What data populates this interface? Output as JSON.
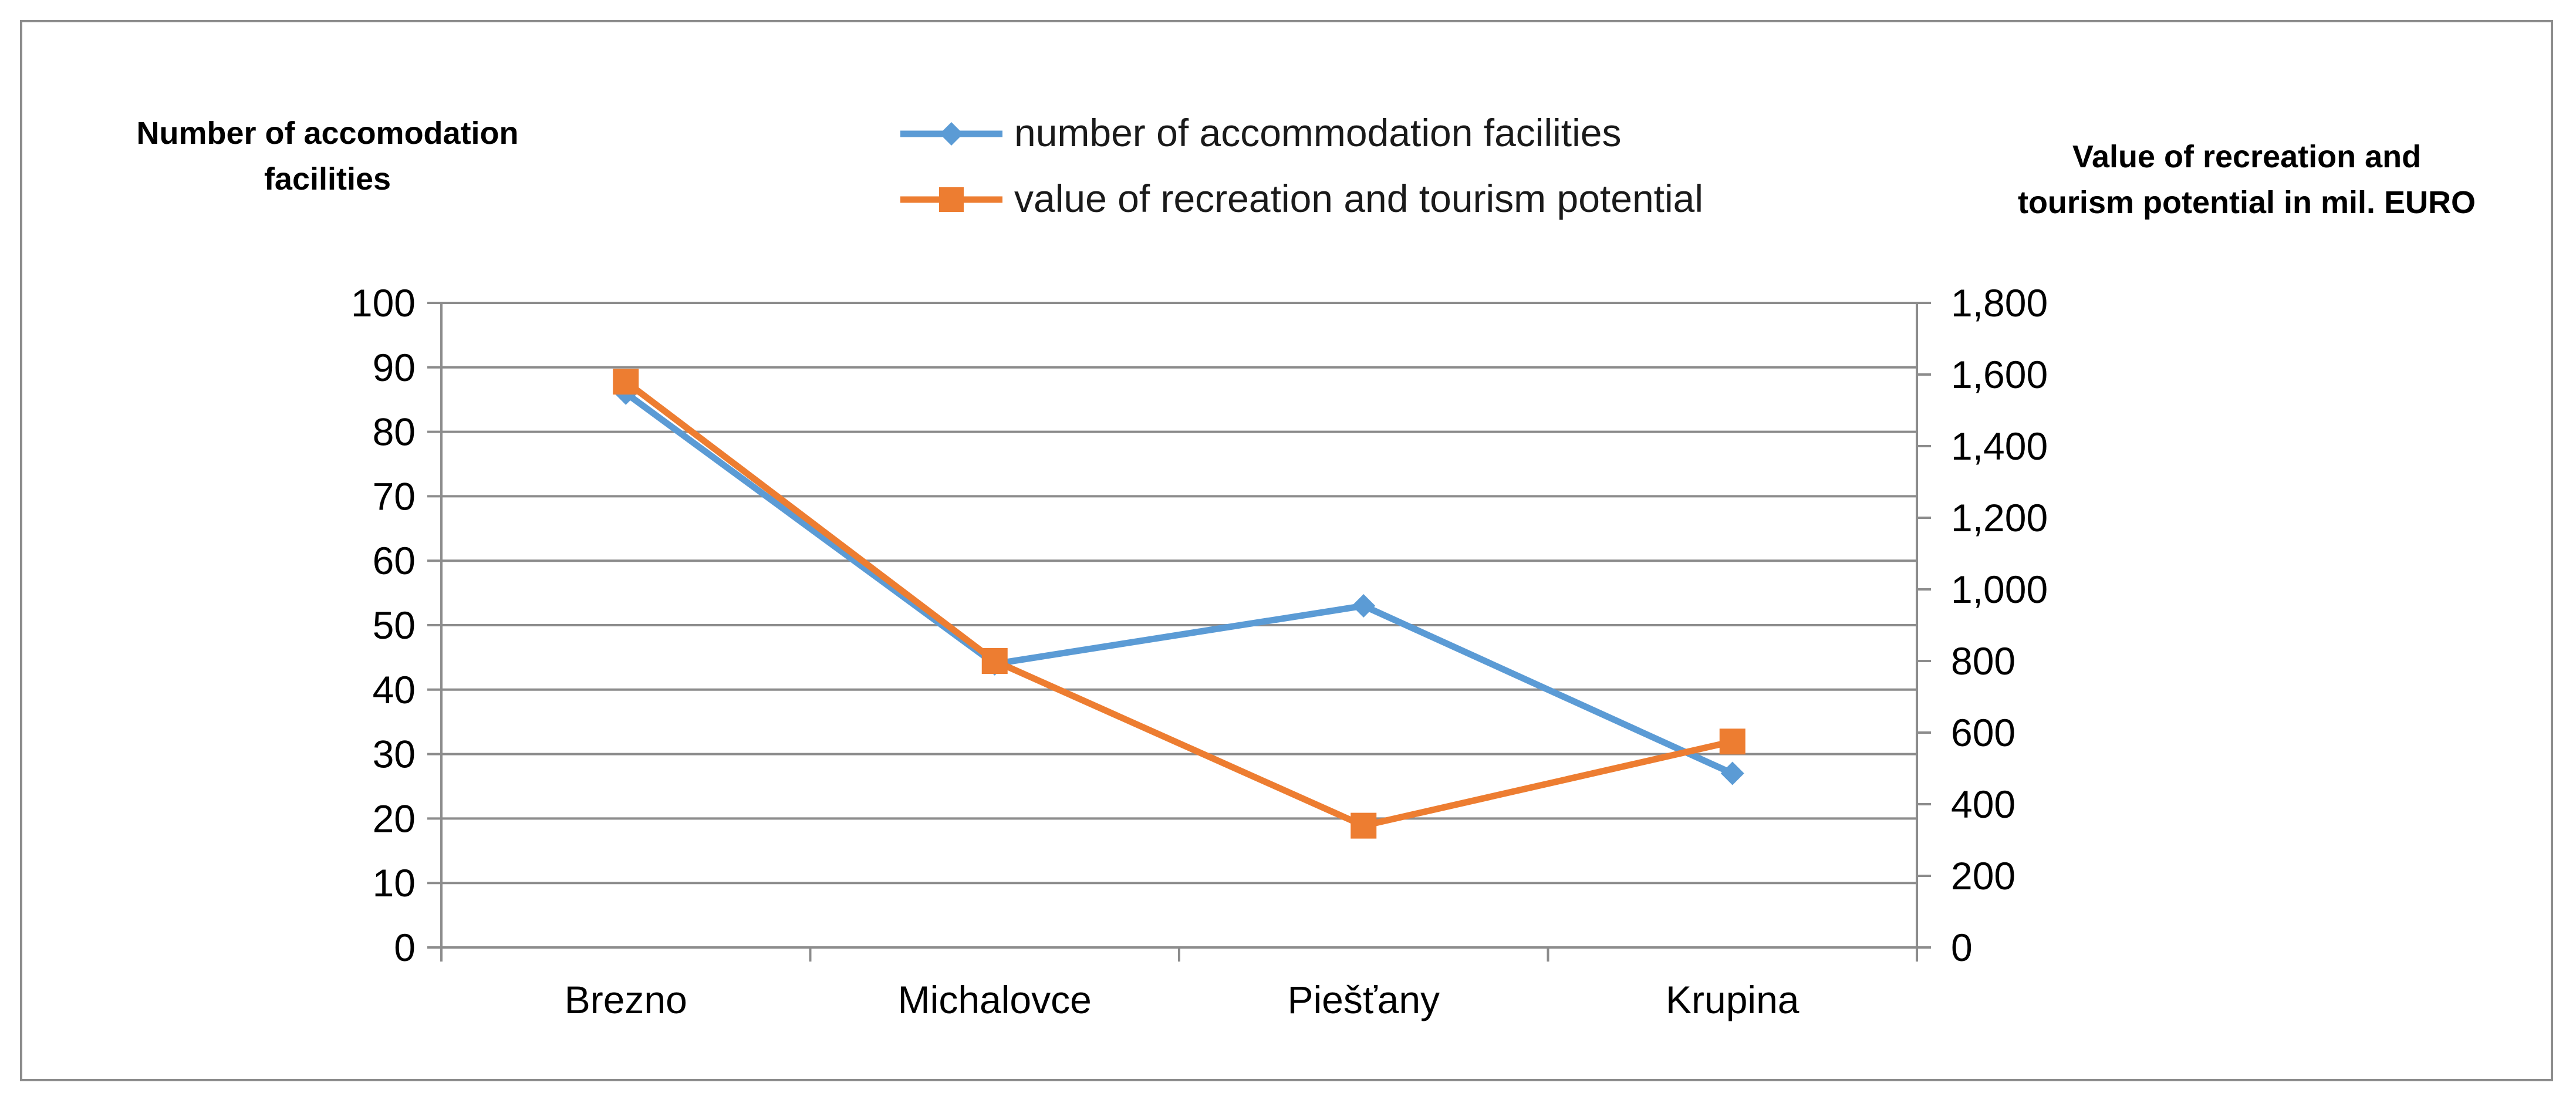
{
  "chart_data": {
    "type": "line",
    "categories": [
      "Brezno",
      "Michalovce",
      "Piešťany",
      "Krupina"
    ],
    "series": [
      {
        "name": "number of accommodation facilities",
        "axis": "left",
        "values": [
          86,
          44,
          53,
          27
        ],
        "color": "#5b9bd5",
        "marker": "diamond"
      },
      {
        "name": "value of recreation and tourism potential",
        "axis": "right",
        "values": [
          1580,
          800,
          340,
          575
        ],
        "color": "#ed7d31",
        "marker": "square"
      }
    ],
    "ylabel_left": "Number of accomodation facilities",
    "ylabel_right": "Value of recreation and tourism potential in mil. EURO",
    "ylim_left": [
      0,
      100
    ],
    "yticks_left": [
      "0",
      "10",
      "20",
      "30",
      "40",
      "50",
      "60",
      "70",
      "80",
      "90",
      "100"
    ],
    "ylim_right": [
      0,
      1800
    ],
    "yticks_right": [
      "0",
      "200",
      "400",
      "600",
      "800",
      "1,000",
      "1,200",
      "1,400",
      "1,600",
      "1,800"
    ],
    "grid": true,
    "legend": "top-center"
  }
}
